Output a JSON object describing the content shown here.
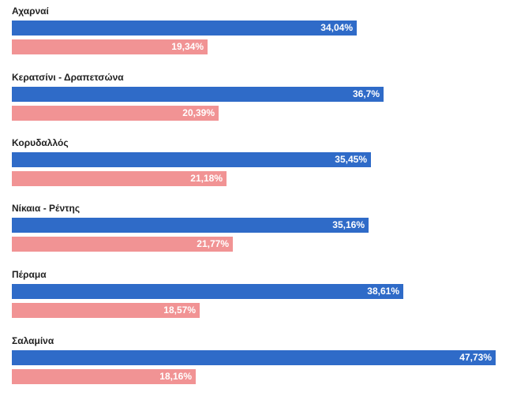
{
  "colors": {
    "series_a": "#2f6bc8",
    "series_b": "#f19394"
  },
  "chart_data": {
    "type": "bar",
    "orientation": "horizontal",
    "categories": [
      "Αχαρναί",
      "Κερατσίνι - Δραπετσώνα",
      "Κορυδαλλός",
      "Νίκαια - Ρέντης",
      "Πέραμα",
      "Σαλαμίνα"
    ],
    "series": [
      {
        "values": [
          34.04,
          36.7,
          35.45,
          35.16,
          38.61,
          47.73
        ],
        "labels": [
          "34,04%",
          "36,7%",
          "35,45%",
          "35,16%",
          "38,61%",
          "47,73%"
        ],
        "color": "#2f6bc8"
      },
      {
        "values": [
          19.34,
          20.39,
          21.18,
          21.77,
          18.57,
          18.16
        ],
        "labels": [
          "19,34%",
          "20,39%",
          "21,18%",
          "21,77%",
          "18,57%",
          "18,16%"
        ],
        "color": "#f19394"
      }
    ],
    "xlim": [
      0,
      50
    ],
    "grid": false,
    "legend": "none"
  }
}
